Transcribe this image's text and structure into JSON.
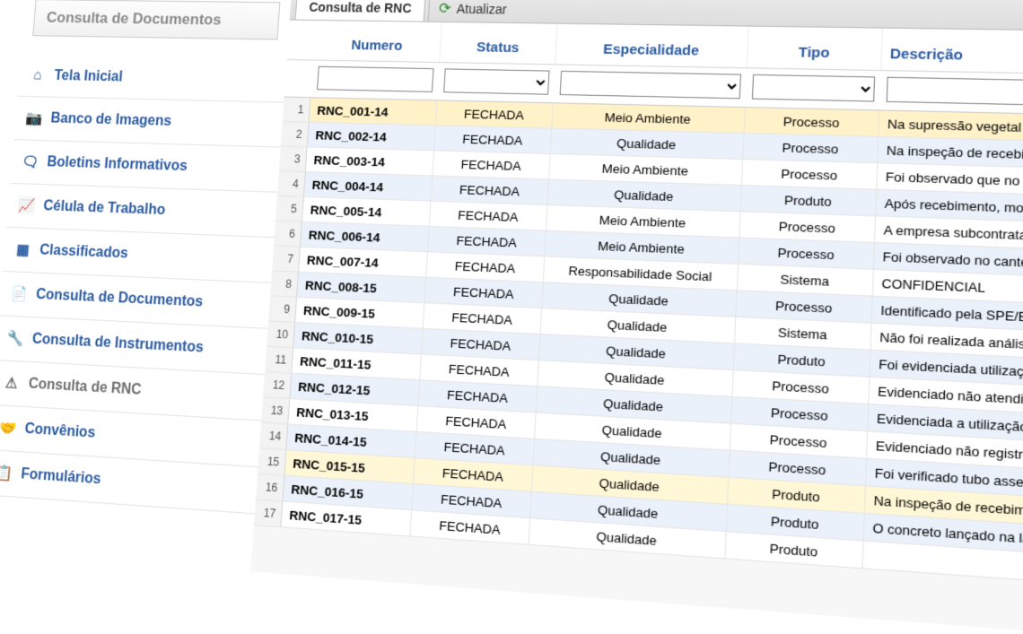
{
  "sidebar": {
    "header": "Consulta de Documentos",
    "items": [
      {
        "icon": "home-icon",
        "glyph": "⌂",
        "label": "Tela Inicial"
      },
      {
        "icon": "camera-icon",
        "glyph": "📷",
        "label": "Banco de Imagens"
      },
      {
        "icon": "comments-icon",
        "glyph": "🗨",
        "label": "Boletins Informativos"
      },
      {
        "icon": "linechart-icon",
        "glyph": "📈",
        "label": "Célula de Trabalho"
      },
      {
        "icon": "grid-icon",
        "glyph": "▦",
        "label": "Classificados"
      },
      {
        "icon": "document-icon",
        "glyph": "📄",
        "label": "Consulta de Documentos"
      },
      {
        "icon": "wrench-icon",
        "glyph": "🔧",
        "label": "Consulta de Instrumentos"
      },
      {
        "icon": "warning-icon",
        "glyph": "⚠",
        "label": "Consulta de RNC",
        "active": true
      },
      {
        "icon": "handshake-icon",
        "glyph": "🤝",
        "label": "Convênios"
      },
      {
        "icon": "form-icon",
        "glyph": "📋",
        "label": "Formulários"
      }
    ]
  },
  "tab": {
    "title": "Consulta de RNC",
    "refresh_label": "Atualizar"
  },
  "columns": [
    {
      "key": "numero",
      "label": "Numero",
      "widthClass": "w-num",
      "filter": "text"
    },
    {
      "key": "status",
      "label": "Status",
      "widthClass": "w-status",
      "filter": "select"
    },
    {
      "key": "especialidade",
      "label": "Especialidade",
      "widthClass": "w-esp",
      "filter": "select"
    },
    {
      "key": "tipo",
      "label": "Tipo",
      "widthClass": "w-tipo",
      "filter": "select"
    },
    {
      "key": "descricao",
      "label": "Descrição",
      "widthClass": "w-desc",
      "filter": "text"
    }
  ],
  "rows": [
    {
      "n": 1,
      "sel": true,
      "numero": "RNC_001-14",
      "status": "FECHADA",
      "especialidade": "Meio Ambiente",
      "tipo": "Processo",
      "descricao": "Na supressão vegetal da c"
    },
    {
      "n": 2,
      "numero": "RNC_002-14",
      "status": "FECHADA",
      "especialidade": "Qualidade",
      "tipo": "Processo",
      "descricao": "Na inspeção de recebimen"
    },
    {
      "n": 3,
      "numero": "RNC_003-14",
      "status": "FECHADA",
      "especialidade": "Meio Ambiente",
      "tipo": "Processo",
      "descricao": "Foi observado que no cant"
    },
    {
      "n": 4,
      "numero": "RNC_004-14",
      "status": "FECHADA",
      "especialidade": "Qualidade",
      "tipo": "Produto",
      "descricao": "Após recebimento, montag"
    },
    {
      "n": 5,
      "numero": "RNC_005-14",
      "status": "FECHADA",
      "especialidade": "Meio Ambiente",
      "tipo": "Processo",
      "descricao": "A empresa subcontratada C"
    },
    {
      "n": 6,
      "numero": "RNC_006-14",
      "status": "FECHADA",
      "especialidade": "Meio Ambiente",
      "tipo": "Processo",
      "descricao": "Foi observado no canteiro d"
    },
    {
      "n": 7,
      "numero": "RNC_007-14",
      "status": "FECHADA",
      "especialidade": "Responsabilidade Social",
      "tipo": "Sistema",
      "descricao": "CONFIDENCIAL"
    },
    {
      "n": 8,
      "numero": "RNC_008-15",
      "status": "FECHADA",
      "especialidade": "Qualidade",
      "tipo": "Processo",
      "descricao": "Identificado pela SPE/EP, at"
    },
    {
      "n": 9,
      "numero": "RNC_009-15",
      "status": "FECHADA",
      "especialidade": "Qualidade",
      "tipo": "Sistema",
      "descricao": "Não foi realizada análise crít"
    },
    {
      "n": 10,
      "numero": "RNC_010-15",
      "status": "FECHADA",
      "especialidade": "Qualidade",
      "tipo": "Produto",
      "descricao": "Foi evidenciada utilização de"
    },
    {
      "n": 11,
      "numero": "RNC_011-15",
      "status": "FECHADA",
      "especialidade": "Qualidade",
      "tipo": "Processo",
      "descricao": "Evidenciado não atendiment"
    },
    {
      "n": 12,
      "numero": "RNC_012-15",
      "status": "FECHADA",
      "especialidade": "Qualidade",
      "tipo": "Processo",
      "descricao": "Evidenciada a utilização de c"
    },
    {
      "n": 13,
      "numero": "RNC_013-15",
      "status": "FECHADA",
      "especialidade": "Qualidade",
      "tipo": "Processo",
      "descricao": "Evidenciado não registro no D"
    },
    {
      "n": 14,
      "numero": "RNC_014-15",
      "status": "FECHADA",
      "especialidade": "Qualidade",
      "tipo": "Processo",
      "descricao": "Foi verificado tubo assentado"
    },
    {
      "n": 15,
      "hl": true,
      "numero": "RNC_015-15",
      "status": "FECHADA",
      "especialidade": "Qualidade",
      "tipo": "Produto",
      "descricao": "Na inspeção de recebimento d"
    },
    {
      "n": 16,
      "numero": "RNC_016-15",
      "status": "FECHADA",
      "especialidade": "Qualidade",
      "tipo": "Produto",
      "descricao": "O concreto lançado na la"
    },
    {
      "n": 17,
      "numero": "RNC_017-15",
      "status": "FECHADA",
      "especialidade": "Qualidade",
      "tipo": "Produto",
      "descricao": ""
    }
  ],
  "styling": {
    "colors": {
      "link": "#2a5aa0",
      "row_alt": "#eaf1fb",
      "row_selected": "#fff1c8",
      "row_highlight": "#fff7d6",
      "border": "#d6d6d6",
      "tabbar_bg": "#e3e3e3"
    }
  }
}
